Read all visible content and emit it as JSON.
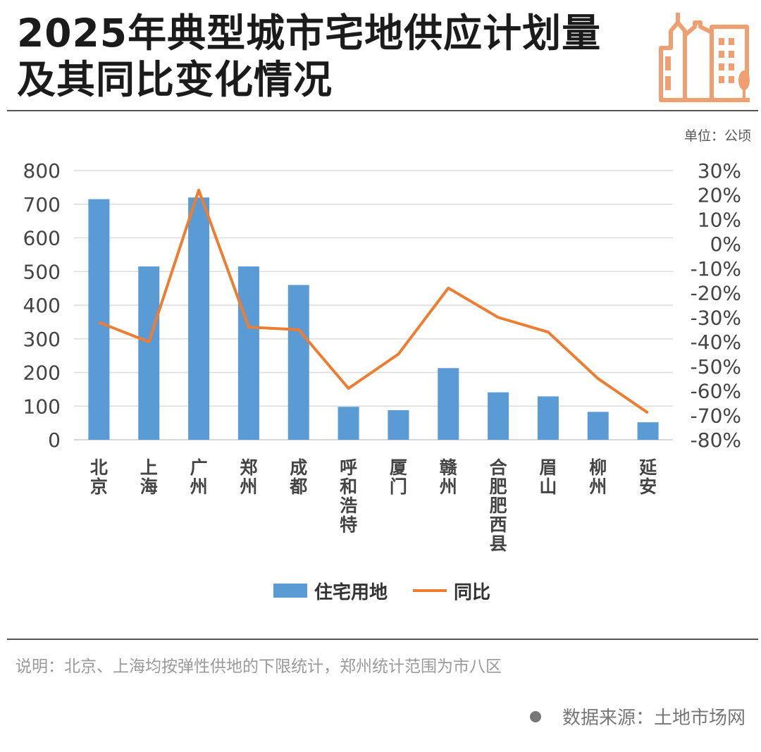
{
  "title": "2025年典型城市宅地供应计划量及其同比变化情况",
  "unit": "单位：公顷",
  "note": "说明：北京、上海均按弹性供地的下限统计，郑州统计范围为市八区",
  "source": "数据来源：土地市场网",
  "colors": {
    "bar": "#5b9bd5",
    "line": "#ed7d31",
    "logo": "#f0a070"
  },
  "chart_data": {
    "type": "bar",
    "categories": [
      "北京",
      "上海",
      "广州",
      "郑州",
      "成都",
      "呼和浩特",
      "厦门",
      "赣州",
      "合肥肥西县",
      "眉山",
      "柳州",
      "延安"
    ],
    "series": [
      {
        "name": "住宅用地",
        "type": "bar",
        "axis": "left",
        "values": [
          715,
          515,
          720,
          515,
          460,
          98,
          88,
          213,
          141,
          129,
          83,
          52
        ]
      },
      {
        "name": "同比",
        "type": "line",
        "axis": "right",
        "unit": "%",
        "values": [
          -32,
          -40,
          22,
          -34,
          -35,
          -59,
          -45,
          -18,
          -30,
          -36,
          -55,
          -69
        ]
      }
    ],
    "y_left": {
      "range": [
        0,
        800
      ],
      "ticks": [
        "800",
        "700",
        "600",
        "500",
        "400",
        "300",
        "200",
        "100",
        "0"
      ]
    },
    "y_right": {
      "range": [
        -80,
        30
      ],
      "ticks": [
        "30%",
        "20%",
        "10%",
        "0%",
        "-10%",
        "-20%",
        "-30%",
        "-40%",
        "-50%",
        "-60%",
        "-70%",
        "-80%"
      ]
    },
    "grid": true,
    "legend": "bottom"
  }
}
